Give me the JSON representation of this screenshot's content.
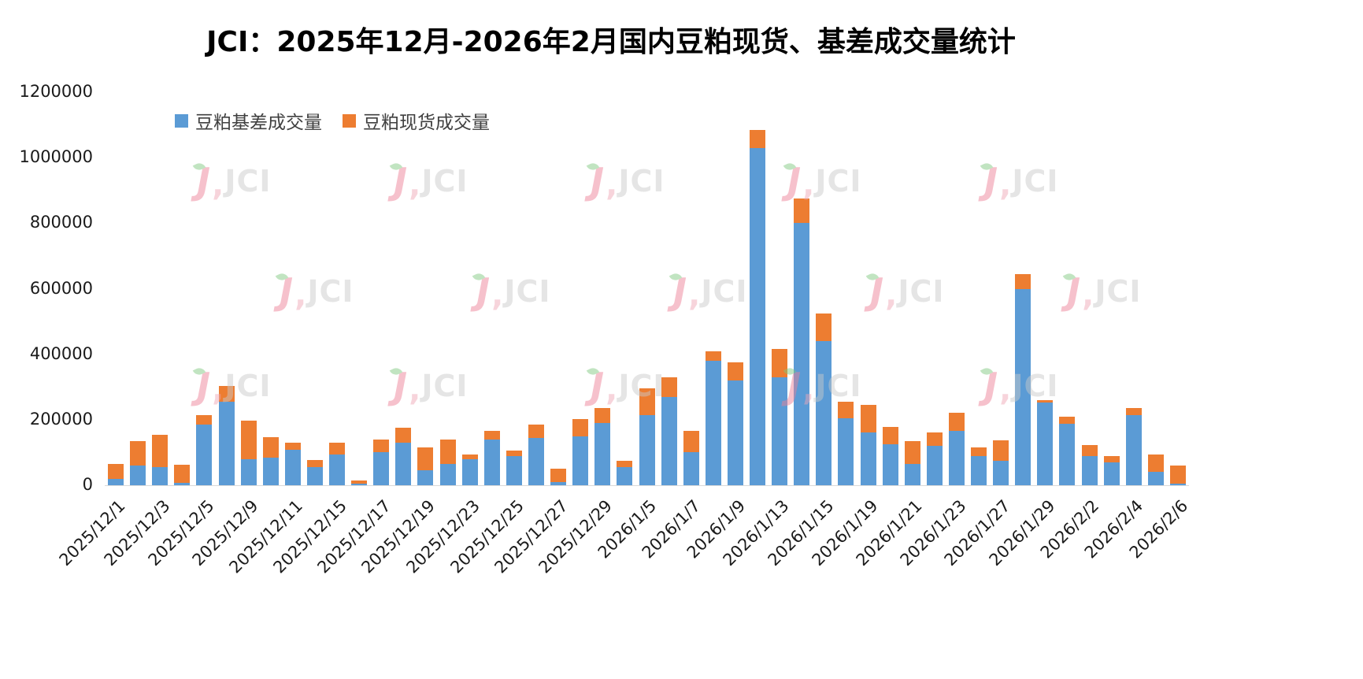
{
  "page": {
    "background": "#ffffff"
  },
  "watermark": {
    "logo_initial": "J",
    "logo_text": "JCI"
  },
  "chart_data": {
    "type": "bar",
    "stacked": true,
    "title": "JCI：2025年12月-2026年2月国内豆粕现货、基差成交量统计",
    "xlabel": "",
    "ylabel": "",
    "ylim": [
      0,
      1200000
    ],
    "y_ticks": [
      0,
      200000,
      400000,
      600000,
      800000,
      1000000,
      1200000
    ],
    "grid": false,
    "legend_position": "top-left",
    "bar_count": 49,
    "x_ticks_every_n_bars": 2,
    "x_tick_labels": [
      "2025/12/1",
      "2025/12/3",
      "2025/12/5",
      "2025/12/9",
      "2025/12/11",
      "2025/12/15",
      "2025/12/17",
      "2025/12/19",
      "2025/12/23",
      "2025/12/25",
      "2025/12/27",
      "2025/12/29",
      "2026/1/5",
      "2026/1/7",
      "2026/1/9",
      "2026/1/13",
      "2026/1/15",
      "2026/1/19",
      "2026/1/21",
      "2026/1/23",
      "2026/1/27",
      "2026/1/29",
      "2026/2/2",
      "2026/2/4",
      "2026/2/6"
    ],
    "series": [
      {
        "name": "豆粕基差成交量",
        "color": "#5B9BD5",
        "values": [
          20000,
          60000,
          55000,
          8000,
          185000,
          255000,
          80000,
          85000,
          108000,
          55000,
          93000,
          5000,
          100000,
          130000,
          45000,
          65000,
          80000,
          140000,
          90000,
          145000,
          10000,
          150000,
          190000,
          55000,
          215000,
          270000,
          100000,
          380000,
          320000,
          1030000,
          330000,
          800000,
          440000,
          205000,
          160000,
          125000,
          65000,
          120000,
          165000,
          90000,
          75000,
          600000,
          252000,
          188000,
          90000,
          70000,
          215000,
          40000,
          5000
        ]
      },
      {
        "name": "豆粕现货成交量",
        "color": "#ED7D31",
        "values": [
          45000,
          75000,
          100000,
          54000,
          30000,
          47000,
          117000,
          62000,
          22000,
          23000,
          37000,
          10000,
          40000,
          45000,
          70000,
          75000,
          13000,
          25000,
          17000,
          40000,
          40000,
          53000,
          45000,
          20000,
          80000,
          60000,
          65000,
          30000,
          55000,
          55000,
          85000,
          75000,
          85000,
          50000,
          85000,
          53000,
          70000,
          40000,
          57000,
          25000,
          63000,
          45000,
          8000,
          22000,
          32000,
          18000,
          20000,
          55000,
          55000
        ]
      }
    ]
  }
}
